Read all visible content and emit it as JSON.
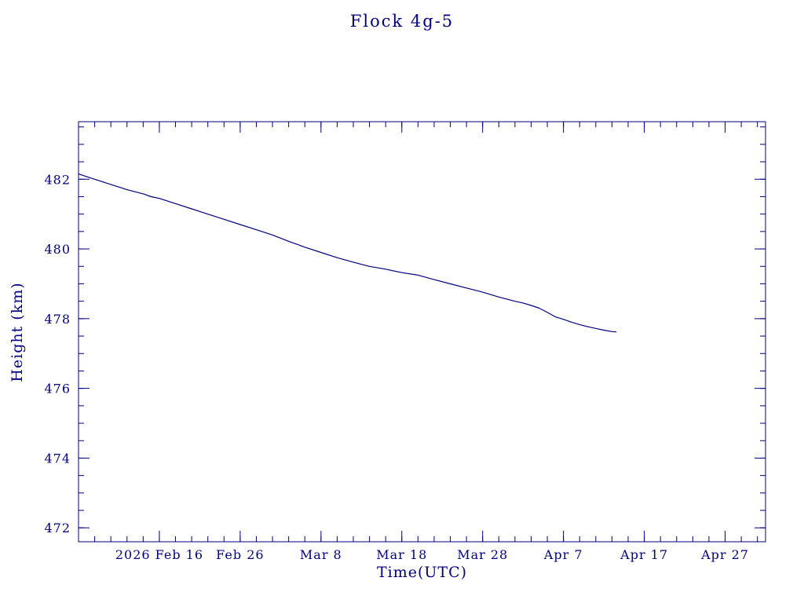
{
  "page": {
    "background": "#ffffff",
    "text_color": "#000080"
  },
  "chart_data": {
    "type": "line",
    "title": "Flock 4g-5",
    "xlabel": "Time(UTC)",
    "ylabel": "Height (km)",
    "line_color": "#000080",
    "axis_color": "#000080",
    "x_epoch": "2026-02-06",
    "x_units": "days",
    "xlim": [
      0,
      85
    ],
    "ylim": [
      471.6,
      483.65
    ],
    "x_ticks": [
      {
        "x": 10,
        "label": "2026 Feb 16"
      },
      {
        "x": 20,
        "label": "Feb 26"
      },
      {
        "x": 30,
        "label": "Mar 8"
      },
      {
        "x": 40,
        "label": "Mar 18"
      },
      {
        "x": 50,
        "label": "Mar 28"
      },
      {
        "x": 60,
        "label": "Apr 7"
      },
      {
        "x": 70,
        "label": "Apr 17"
      },
      {
        "x": 80,
        "label": "Apr 27"
      }
    ],
    "y_ticks": [
      472,
      474,
      476,
      478,
      480,
      482
    ],
    "x_minor_step": 2,
    "y_minor_step": 0.5,
    "x": [
      0,
      2,
      4,
      6,
      8,
      9,
      10,
      12,
      14,
      16,
      18,
      20,
      22,
      24,
      26,
      28,
      30,
      32,
      34,
      36,
      38,
      40,
      42,
      44,
      46,
      48,
      50,
      52,
      54,
      55,
      56,
      57,
      58,
      59,
      60,
      61,
      62,
      63,
      64,
      65,
      66,
      66.5
    ],
    "y": [
      482.15,
      482.0,
      481.85,
      481.7,
      481.58,
      481.5,
      481.45,
      481.3,
      481.15,
      481.0,
      480.85,
      480.7,
      480.55,
      480.4,
      480.22,
      480.05,
      479.9,
      479.75,
      479.62,
      479.5,
      479.42,
      479.32,
      479.25,
      479.12,
      479.0,
      478.88,
      478.76,
      478.62,
      478.5,
      478.45,
      478.38,
      478.3,
      478.18,
      478.05,
      477.98,
      477.9,
      477.83,
      477.77,
      477.72,
      477.67,
      477.63,
      477.62
    ]
  }
}
